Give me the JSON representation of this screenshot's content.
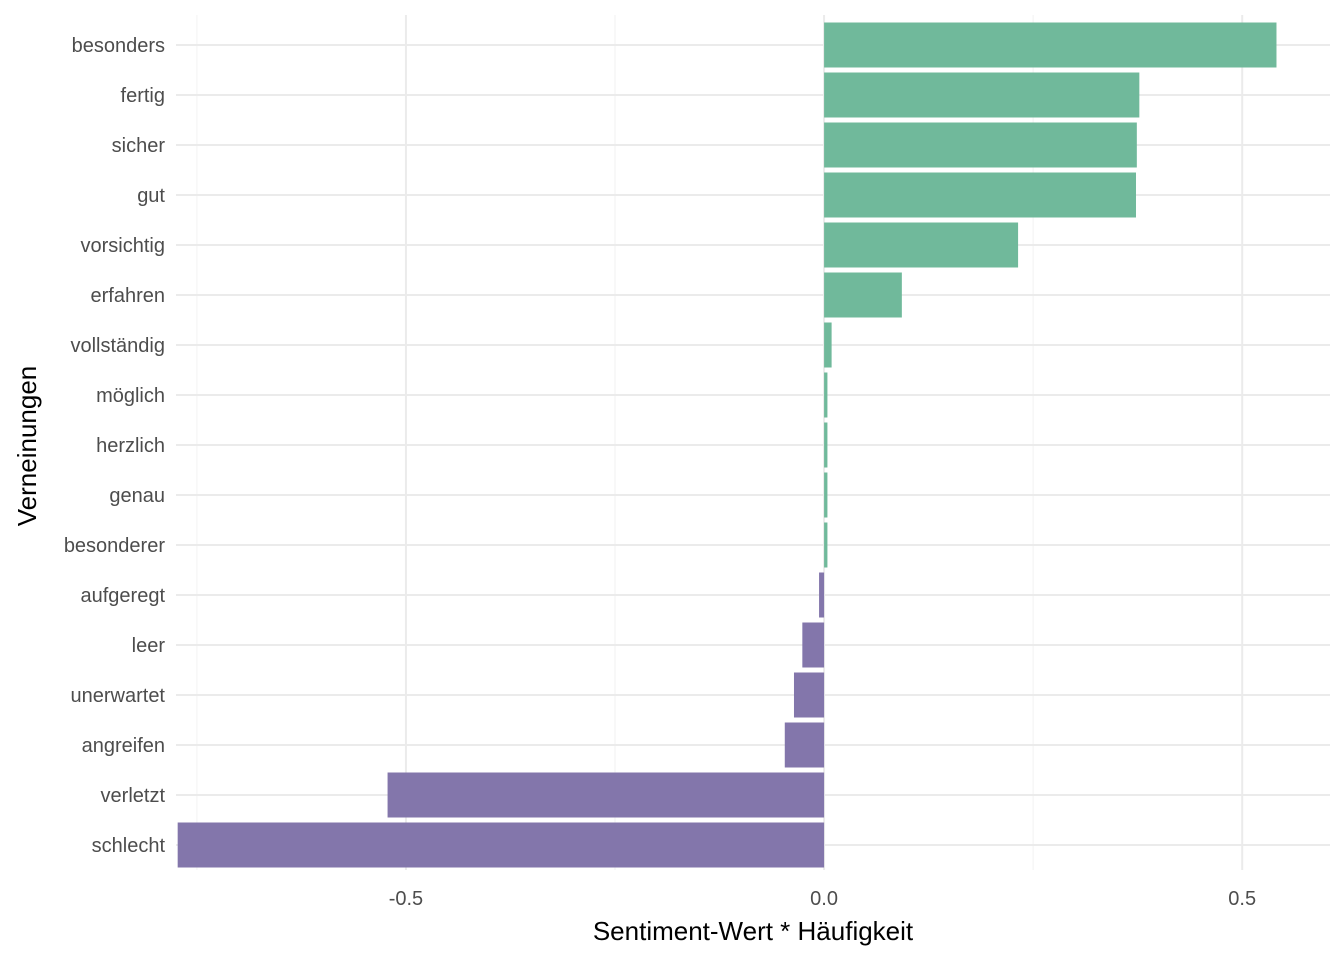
{
  "chart_data": {
    "type": "bar",
    "orientation": "horizontal",
    "xlabel": "Sentiment-Wert * Häufigkeit",
    "ylabel": "Verneinungen",
    "xlim": [
      -0.775,
      0.605
    ],
    "x_ticks": [
      -0.5,
      0.0,
      0.5
    ],
    "x_tick_labels": [
      "-0.5",
      "0.0",
      "0.5"
    ],
    "grid": true,
    "legend": "none",
    "categories": [
      "besonders",
      "fertig",
      "sicher",
      "gut",
      "vorsichtig",
      "erfahren",
      "vollständig",
      "möglich",
      "herzlich",
      "genau",
      "besonderer",
      "aufgeregt",
      "leer",
      "unerwartet",
      "angreifen",
      "verletzt",
      "schlecht"
    ],
    "values": [
      0.541,
      0.377,
      0.374,
      0.373,
      0.232,
      0.093,
      0.009,
      0.004,
      0.004,
      0.004,
      0.004,
      -0.006,
      -0.026,
      -0.036,
      -0.047,
      -0.522,
      -0.773
    ],
    "colors": {
      "positive": "#70b99b",
      "negative": "#8376ab"
    }
  }
}
